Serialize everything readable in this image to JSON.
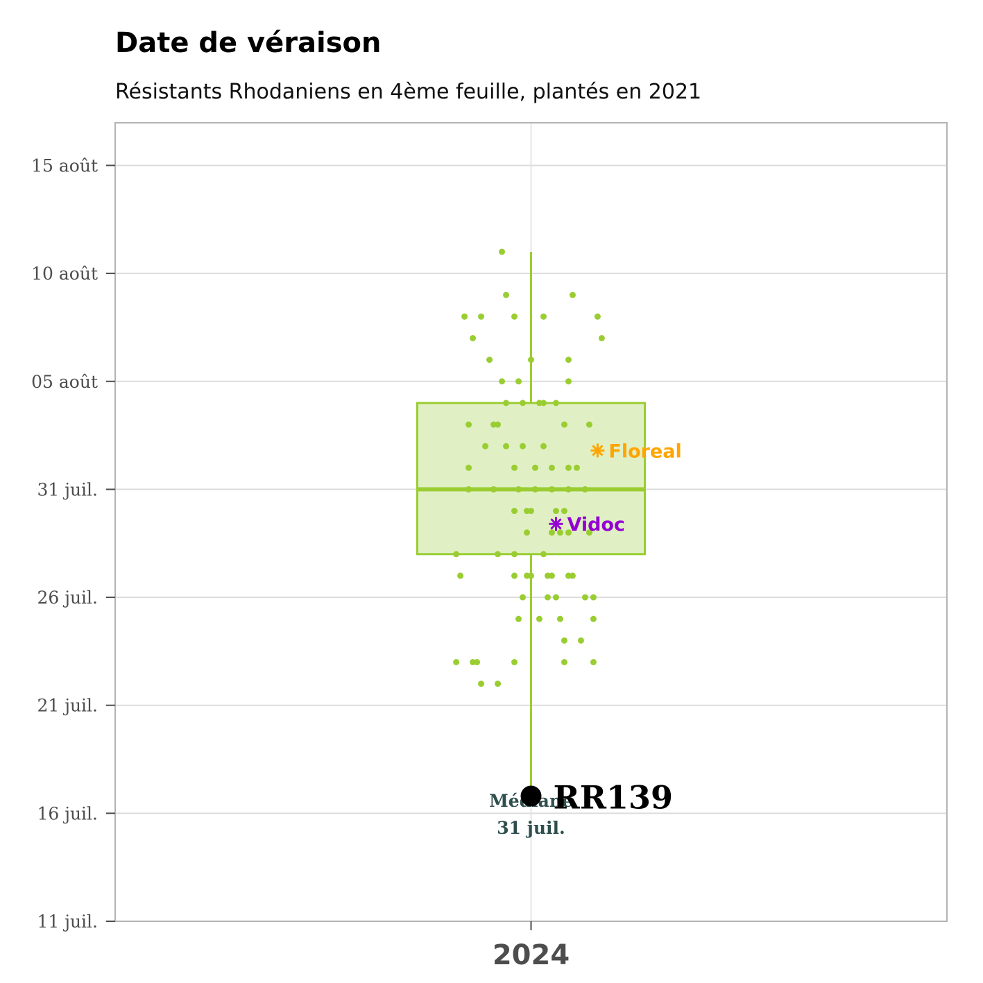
{
  "chart_data": {
    "type": "box",
    "title": "Date de véraison",
    "subtitle": "Résistants Rhodaniens en 4ème feuille, plantés en 2021",
    "xlabel": "",
    "ylabel": "",
    "categories": [
      "2024"
    ],
    "y_unit": "day of month (2024-07-01 = 1; values > 31 fall in August)",
    "ylim": [
      11,
      47
    ],
    "y_ticks": [
      {
        "value": 11,
        "label": "11 juil."
      },
      {
        "value": 16,
        "label": "16 juil."
      },
      {
        "value": 21,
        "label": "21 juil."
      },
      {
        "value": 26,
        "label": "26 juil."
      },
      {
        "value": 31,
        "label": "31 juil."
      },
      {
        "value": 36,
        "label": "05 août"
      },
      {
        "value": 41,
        "label": "10 août"
      },
      {
        "value": 46,
        "label": "15 août"
      }
    ],
    "box": {
      "lower_whisker": 17,
      "q1": 28,
      "median": 31,
      "q3": 35,
      "upper_whisker": 42
    },
    "points": [
      {
        "x": 2023.93,
        "y": 42
      },
      {
        "x": 2023.94,
        "y": 40
      },
      {
        "x": 2024.1,
        "y": 40
      },
      {
        "x": 2023.84,
        "y": 39
      },
      {
        "x": 2023.88,
        "y": 39
      },
      {
        "x": 2023.96,
        "y": 39
      },
      {
        "x": 2024.03,
        "y": 39
      },
      {
        "x": 2024.16,
        "y": 39
      },
      {
        "x": 2023.86,
        "y": 38
      },
      {
        "x": 2024.17,
        "y": 38
      },
      {
        "x": 2023.9,
        "y": 37
      },
      {
        "x": 2024.0,
        "y": 37
      },
      {
        "x": 2024.09,
        "y": 37
      },
      {
        "x": 2023.93,
        "y": 36
      },
      {
        "x": 2023.97,
        "y": 36
      },
      {
        "x": 2024.09,
        "y": 36
      },
      {
        "x": 2023.94,
        "y": 35
      },
      {
        "x": 2023.98,
        "y": 35
      },
      {
        "x": 2024.02,
        "y": 35
      },
      {
        "x": 2024.03,
        "y": 35
      },
      {
        "x": 2024.06,
        "y": 35
      },
      {
        "x": 2023.85,
        "y": 34
      },
      {
        "x": 2023.91,
        "y": 34
      },
      {
        "x": 2023.92,
        "y": 34
      },
      {
        "x": 2024.08,
        "y": 34
      },
      {
        "x": 2024.14,
        "y": 34
      },
      {
        "x": 2023.89,
        "y": 33
      },
      {
        "x": 2023.94,
        "y": 33
      },
      {
        "x": 2023.98,
        "y": 33
      },
      {
        "x": 2024.03,
        "y": 33
      },
      {
        "x": 2023.85,
        "y": 32
      },
      {
        "x": 2023.96,
        "y": 32
      },
      {
        "x": 2024.01,
        "y": 32
      },
      {
        "x": 2024.05,
        "y": 32
      },
      {
        "x": 2024.09,
        "y": 32
      },
      {
        "x": 2024.11,
        "y": 32
      },
      {
        "x": 2023.85,
        "y": 31
      },
      {
        "x": 2023.91,
        "y": 31
      },
      {
        "x": 2023.97,
        "y": 31
      },
      {
        "x": 2024.01,
        "y": 31
      },
      {
        "x": 2024.05,
        "y": 31
      },
      {
        "x": 2024.09,
        "y": 31
      },
      {
        "x": 2024.13,
        "y": 31
      },
      {
        "x": 2023.96,
        "y": 30
      },
      {
        "x": 2023.99,
        "y": 30
      },
      {
        "x": 2024.0,
        "y": 30
      },
      {
        "x": 2024.06,
        "y": 30
      },
      {
        "x": 2024.08,
        "y": 30
      },
      {
        "x": 2023.99,
        "y": 29
      },
      {
        "x": 2024.05,
        "y": 29
      },
      {
        "x": 2024.07,
        "y": 29
      },
      {
        "x": 2024.09,
        "y": 29
      },
      {
        "x": 2024.14,
        "y": 29
      },
      {
        "x": 2023.82,
        "y": 28
      },
      {
        "x": 2023.92,
        "y": 28
      },
      {
        "x": 2023.96,
        "y": 28
      },
      {
        "x": 2024.03,
        "y": 28
      },
      {
        "x": 2023.83,
        "y": 27
      },
      {
        "x": 2023.96,
        "y": 27
      },
      {
        "x": 2023.99,
        "y": 27
      },
      {
        "x": 2024.0,
        "y": 27
      },
      {
        "x": 2024.04,
        "y": 27
      },
      {
        "x": 2024.05,
        "y": 27
      },
      {
        "x": 2024.09,
        "y": 27
      },
      {
        "x": 2024.1,
        "y": 27
      },
      {
        "x": 2023.98,
        "y": 26
      },
      {
        "x": 2024.04,
        "y": 26
      },
      {
        "x": 2024.06,
        "y": 26
      },
      {
        "x": 2024.13,
        "y": 26
      },
      {
        "x": 2024.15,
        "y": 26
      },
      {
        "x": 2023.97,
        "y": 25
      },
      {
        "x": 2024.02,
        "y": 25
      },
      {
        "x": 2024.07,
        "y": 25
      },
      {
        "x": 2024.15,
        "y": 25
      },
      {
        "x": 2024.08,
        "y": 24
      },
      {
        "x": 2024.12,
        "y": 24
      },
      {
        "x": 2023.82,
        "y": 23
      },
      {
        "x": 2023.86,
        "y": 23
      },
      {
        "x": 2023.87,
        "y": 23
      },
      {
        "x": 2023.96,
        "y": 23
      },
      {
        "x": 2024.08,
        "y": 23
      },
      {
        "x": 2024.15,
        "y": 23
      },
      {
        "x": 2023.88,
        "y": 22
      },
      {
        "x": 2023.92,
        "y": 22
      }
    ],
    "highlights": [
      {
        "name": "Floreal",
        "x": 2024.16,
        "y": 32.8,
        "color": "#ffa500",
        "marker": "asterisk"
      },
      {
        "name": "Vidoc",
        "x": 2024.06,
        "y": 29.4,
        "color": "#9400d3",
        "marker": "asterisk"
      }
    ],
    "focus": {
      "name": "RR139",
      "x": 2024.0,
      "y": 16.8,
      "color": "#000000"
    },
    "median_annotation": {
      "line1": "Médiane",
      "line2": "31 juil.",
      "x": 2024.0,
      "y": 16.0
    },
    "colors": {
      "accent": "#9acd32",
      "box_fill": "#e0f0c4",
      "grid": "#dcdcdc",
      "panel_border": "#b3b3b3",
      "median_text": "#2f4f4f"
    },
    "x_range": [
      2023,
      2025
    ],
    "grid": true,
    "legend": "none"
  }
}
